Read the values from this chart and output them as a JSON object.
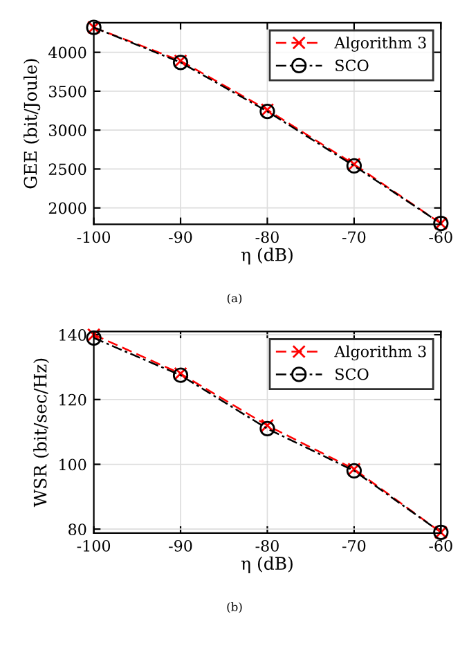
{
  "chart_data": [
    {
      "type": "line",
      "xlabel": "η (dB)",
      "ylabel": "GEE (bit/Joule)",
      "annotations": [
        "(a)"
      ],
      "x": [
        -100,
        -90,
        -80,
        -70,
        -60
      ],
      "xlim": [
        -100,
        -60
      ],
      "xticks": [
        -100,
        -90,
        -80,
        -70,
        -60
      ],
      "ylim": [
        1790,
        4380
      ],
      "yticks": [
        2000,
        2500,
        3000,
        3500,
        4000
      ],
      "grid": true,
      "legend": "top right",
      "series": [
        {
          "name": "Algorithm 3",
          "color": "#ff0000",
          "line_style": "dashed",
          "marker": "cross",
          "values": [
            4320,
            3890,
            3260,
            2560,
            1800
          ]
        },
        {
          "name": "SCO",
          "color": "#000000",
          "line_style": "dashdot",
          "marker": "circle",
          "values": [
            4320,
            3870,
            3240,
            2540,
            1800
          ]
        }
      ]
    },
    {
      "type": "line",
      "xlabel": "η (dB)",
      "ylabel": "WSR (bit/sec/Hz)",
      "annotations": [
        "(b)"
      ],
      "x": [
        -100,
        -90,
        -80,
        -70,
        -60
      ],
      "xlim": [
        -100,
        -60
      ],
      "xticks": [
        -100,
        -90,
        -80,
        -70,
        -60
      ],
      "ylim": [
        78.8,
        141
      ],
      "yticks": [
        80,
        100,
        120,
        140
      ],
      "grid": true,
      "legend": "top right",
      "series": [
        {
          "name": "Algorithm 3",
          "color": "#ff0000",
          "line_style": "dashed",
          "marker": "cross",
          "values": [
            140,
            128,
            112,
            98.5,
            79
          ]
        },
        {
          "name": "SCO",
          "color": "#000000",
          "line_style": "dashdot",
          "marker": "circle",
          "values": [
            139,
            127.5,
            111,
            98,
            79
          ]
        }
      ]
    }
  ]
}
